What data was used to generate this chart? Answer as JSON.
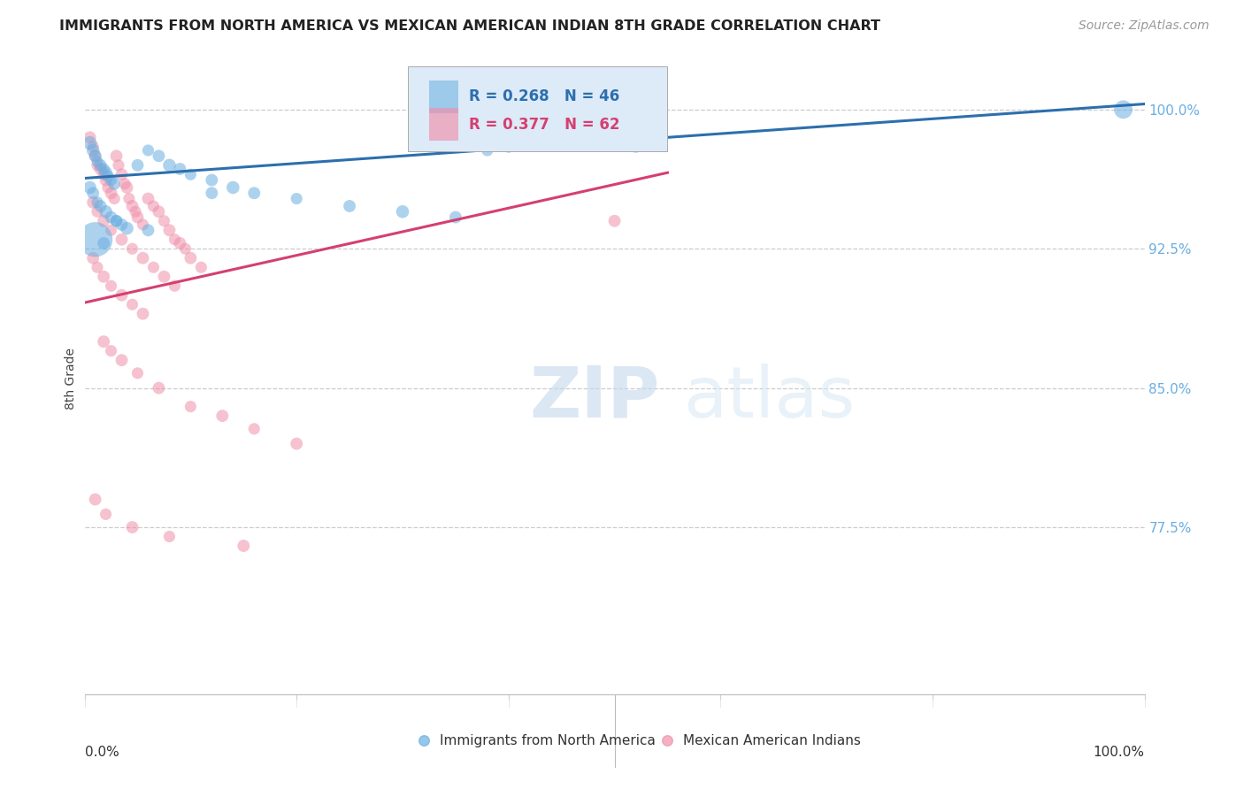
{
  "title": "IMMIGRANTS FROM NORTH AMERICA VS MEXICAN AMERICAN INDIAN 8TH GRADE CORRELATION CHART",
  "source": "Source: ZipAtlas.com",
  "ylabel": "8th Grade",
  "ytick_labels": [
    "100.0%",
    "92.5%",
    "85.0%",
    "77.5%"
  ],
  "ytick_values": [
    1.0,
    0.925,
    0.85,
    0.775
  ],
  "xlim": [
    0.0,
    1.0
  ],
  "ylim": [
    0.685,
    1.025
  ],
  "blue_R": 0.268,
  "blue_N": 46,
  "pink_R": 0.377,
  "pink_N": 62,
  "blue_color": "#6aaee0",
  "pink_color": "#f090aa",
  "blue_line_color": "#2c6fad",
  "pink_line_color": "#d44070",
  "legend_label_blue": "Immigrants from North America",
  "legend_label_pink": "Mexican American Indians",
  "watermark_zip": "ZIP",
  "watermark_atlas": "atlas",
  "blue_line_x": [
    0.0,
    1.0
  ],
  "blue_line_y": [
    0.963,
    1.003
  ],
  "pink_line_x": [
    0.0,
    0.55
  ],
  "pink_line_y": [
    0.896,
    0.966
  ],
  "blue_scatter_x": [
    0.005,
    0.008,
    0.01,
    0.012,
    0.015,
    0.018,
    0.02,
    0.022,
    0.025,
    0.028,
    0.005,
    0.008,
    0.012,
    0.015,
    0.02,
    0.025,
    0.03,
    0.035,
    0.04,
    0.05,
    0.06,
    0.07,
    0.08,
    0.09,
    0.1,
    0.12,
    0.14,
    0.16,
    0.2,
    0.25,
    0.3,
    0.35,
    0.38,
    0.4,
    0.42,
    0.44,
    0.46,
    0.48,
    0.5,
    0.52,
    0.01,
    0.018,
    0.03,
    0.06,
    0.12,
    0.98
  ],
  "blue_scatter_y": [
    0.982,
    0.978,
    0.975,
    0.972,
    0.97,
    0.968,
    0.966,
    0.964,
    0.962,
    0.96,
    0.958,
    0.955,
    0.95,
    0.948,
    0.945,
    0.942,
    0.94,
    0.938,
    0.936,
    0.97,
    0.978,
    0.975,
    0.97,
    0.968,
    0.965,
    0.962,
    0.958,
    0.955,
    0.952,
    0.948,
    0.945,
    0.942,
    0.978,
    0.98,
    0.982,
    0.984,
    0.986,
    0.984,
    0.982,
    0.98,
    0.93,
    0.928,
    0.94,
    0.935,
    0.955,
    1.0
  ],
  "blue_scatter_sizes": [
    25,
    22,
    20,
    18,
    20,
    18,
    22,
    20,
    18,
    20,
    22,
    20,
    18,
    20,
    22,
    20,
    18,
    20,
    22,
    20,
    18,
    20,
    22,
    20,
    18,
    20,
    22,
    20,
    18,
    20,
    22,
    20,
    18,
    20,
    22,
    20,
    18,
    20,
    22,
    20,
    160,
    20,
    20,
    20,
    20,
    45
  ],
  "pink_scatter_x": [
    0.005,
    0.008,
    0.01,
    0.012,
    0.015,
    0.018,
    0.02,
    0.022,
    0.025,
    0.028,
    0.03,
    0.032,
    0.035,
    0.038,
    0.04,
    0.042,
    0.045,
    0.048,
    0.05,
    0.055,
    0.06,
    0.065,
    0.07,
    0.075,
    0.08,
    0.085,
    0.09,
    0.095,
    0.1,
    0.11,
    0.008,
    0.012,
    0.018,
    0.025,
    0.035,
    0.045,
    0.055,
    0.065,
    0.075,
    0.085,
    0.008,
    0.012,
    0.018,
    0.025,
    0.035,
    0.045,
    0.055,
    0.018,
    0.025,
    0.035,
    0.05,
    0.07,
    0.1,
    0.13,
    0.16,
    0.2,
    0.5,
    0.01,
    0.02,
    0.045,
    0.08,
    0.15
  ],
  "pink_scatter_y": [
    0.985,
    0.98,
    0.975,
    0.97,
    0.968,
    0.965,
    0.962,
    0.958,
    0.955,
    0.952,
    0.975,
    0.97,
    0.965,
    0.96,
    0.958,
    0.952,
    0.948,
    0.945,
    0.942,
    0.938,
    0.952,
    0.948,
    0.945,
    0.94,
    0.935,
    0.93,
    0.928,
    0.925,
    0.92,
    0.915,
    0.95,
    0.945,
    0.94,
    0.935,
    0.93,
    0.925,
    0.92,
    0.915,
    0.91,
    0.905,
    0.92,
    0.915,
    0.91,
    0.905,
    0.9,
    0.895,
    0.89,
    0.875,
    0.87,
    0.865,
    0.858,
    0.85,
    0.84,
    0.835,
    0.828,
    0.82,
    0.94,
    0.79,
    0.782,
    0.775,
    0.77,
    0.765
  ],
  "pink_scatter_sizes": [
    20,
    18,
    20,
    18,
    20,
    18,
    20,
    18,
    20,
    18,
    20,
    18,
    20,
    18,
    20,
    18,
    20,
    18,
    20,
    18,
    20,
    18,
    20,
    18,
    20,
    18,
    20,
    18,
    20,
    18,
    20,
    18,
    20,
    18,
    20,
    18,
    20,
    18,
    20,
    18,
    20,
    18,
    20,
    18,
    20,
    18,
    20,
    20,
    18,
    20,
    18,
    20,
    18,
    20,
    18,
    20,
    20,
    20,
    18,
    20,
    18,
    20
  ]
}
